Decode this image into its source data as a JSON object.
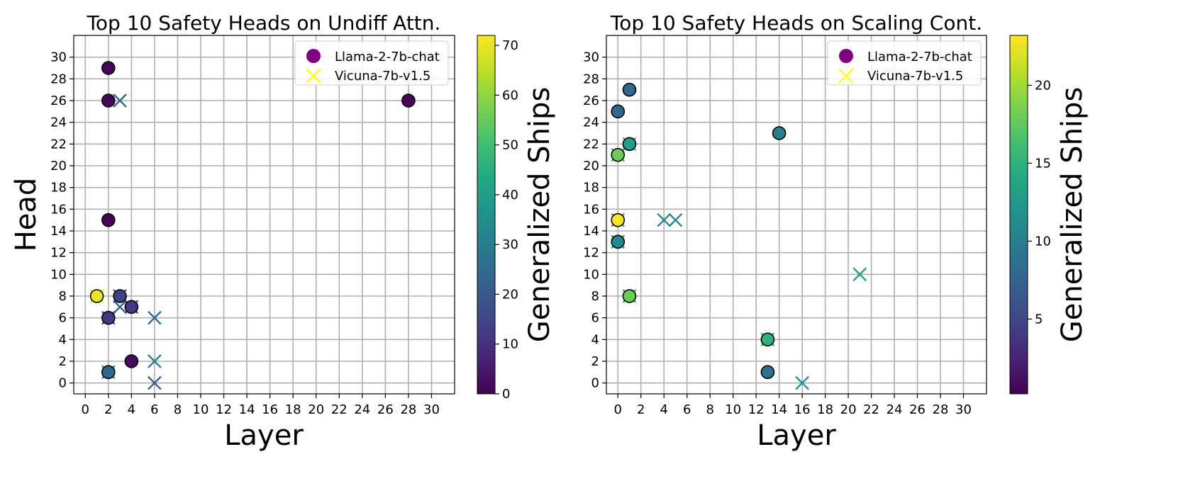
{
  "chart_data": [
    {
      "type": "scatter",
      "title": "Top 10 Safety Heads on Undiff Attn.",
      "xlabel": "Layer",
      "ylabel": "Head",
      "xlim": [
        -1,
        32
      ],
      "ylim": [
        -1,
        32
      ],
      "xticks": [
        0,
        2,
        4,
        6,
        8,
        10,
        12,
        14,
        16,
        18,
        20,
        22,
        24,
        26,
        28,
        30
      ],
      "yticks": [
        0,
        2,
        4,
        6,
        8,
        10,
        12,
        14,
        16,
        18,
        20,
        22,
        24,
        26,
        28,
        30
      ],
      "grid": true,
      "legend": {
        "placement": "top-right",
        "entries": [
          {
            "label": "Llama-2-7b-chat",
            "marker": "circle",
            "color": "#800080"
          },
          {
            "label": "Vicuna-7b-v1.5",
            "marker": "x",
            "color": "#ffff00"
          }
        ]
      },
      "colorbar": {
        "label": "Generalized Ships",
        "min": 0,
        "max": 72,
        "ticks": [
          0,
          10,
          20,
          30,
          40,
          50,
          60,
          70
        ]
      },
      "series": [
        {
          "name": "Llama-2-7b-chat",
          "marker": "circle",
          "points": [
            {
              "x": 2,
              "y": 29,
              "c": 1
            },
            {
              "x": 2,
              "y": 26,
              "c": 1
            },
            {
              "x": 28,
              "y": 26,
              "c": 1
            },
            {
              "x": 2,
              "y": 15,
              "c": 1
            },
            {
              "x": 1,
              "y": 8,
              "c": 70
            },
            {
              "x": 3,
              "y": 8,
              "c": 14
            },
            {
              "x": 4,
              "y": 7,
              "c": 12
            },
            {
              "x": 2,
              "y": 6,
              "c": 12
            },
            {
              "x": 4,
              "y": 2,
              "c": 2
            },
            {
              "x": 2,
              "y": 1,
              "c": 24
            }
          ]
        },
        {
          "name": "Vicuna-7b-v1.5",
          "marker": "x",
          "points": [
            {
              "x": 3,
              "y": 26,
              "c": 24
            },
            {
              "x": 1,
              "y": 8,
              "c": 68
            },
            {
              "x": 3,
              "y": 8,
              "c": 20
            },
            {
              "x": 3,
              "y": 7,
              "c": 22
            },
            {
              "x": 2,
              "y": 6,
              "c": 18
            },
            {
              "x": 6,
              "y": 6,
              "c": 24
            },
            {
              "x": 6,
              "y": 2,
              "c": 32
            },
            {
              "x": 2,
              "y": 1,
              "c": 34
            },
            {
              "x": 6,
              "y": 0,
              "c": 20
            },
            {
              "x": 4,
              "y": 7,
              "c": 16
            }
          ]
        }
      ]
    },
    {
      "type": "scatter",
      "title": "Top 10 Safety Heads on Scaling Cont.",
      "xlabel": "Layer",
      "ylabel": "",
      "xlim": [
        -1,
        32
      ],
      "ylim": [
        -1,
        32
      ],
      "xticks": [
        0,
        2,
        4,
        6,
        8,
        10,
        12,
        14,
        16,
        18,
        20,
        22,
        24,
        26,
        28,
        30
      ],
      "yticks": [
        0,
        2,
        4,
        6,
        8,
        10,
        12,
        14,
        16,
        18,
        20,
        22,
        24,
        26,
        28,
        30
      ],
      "grid": true,
      "legend": {
        "placement": "top-right",
        "entries": [
          {
            "label": "Llama-2-7b-chat",
            "marker": "circle",
            "color": "#800080"
          },
          {
            "label": "Vicuna-7b-v1.5",
            "marker": "x",
            "color": "#ffff00"
          }
        ]
      },
      "colorbar": {
        "label": "Generalized Ships",
        "min": 0.2,
        "max": 23.2,
        "ticks": [
          5,
          10,
          15,
          20
        ]
      },
      "series": [
        {
          "name": "Llama-2-7b-chat",
          "marker": "circle",
          "points": [
            {
              "x": 1,
              "y": 27,
              "c": 8
            },
            {
              "x": 0,
              "y": 25,
              "c": 8
            },
            {
              "x": 14,
              "y": 23,
              "c": 10
            },
            {
              "x": 1,
              "y": 22,
              "c": 13
            },
            {
              "x": 0,
              "y": 21,
              "c": 18
            },
            {
              "x": 0,
              "y": 15,
              "c": 23
            },
            {
              "x": 0,
              "y": 13,
              "c": 11
            },
            {
              "x": 1,
              "y": 8,
              "c": 18
            },
            {
              "x": 13,
              "y": 4,
              "c": 15
            },
            {
              "x": 13,
              "y": 1,
              "c": 9
            }
          ]
        },
        {
          "name": "Vicuna-7b-v1.5",
          "marker": "x",
          "points": [
            {
              "x": 1,
              "y": 22,
              "c": 16
            },
            {
              "x": 0,
              "y": 21,
              "c": 15
            },
            {
              "x": 4,
              "y": 15,
              "c": 11
            },
            {
              "x": 5,
              "y": 15,
              "c": 11
            },
            {
              "x": 0,
              "y": 15,
              "c": 14
            },
            {
              "x": 0,
              "y": 13,
              "c": 13
            },
            {
              "x": 21,
              "y": 10,
              "c": 13
            },
            {
              "x": 1,
              "y": 8,
              "c": 15
            },
            {
              "x": 13,
              "y": 4,
              "c": 15
            },
            {
              "x": 16,
              "y": 0,
              "c": 12
            }
          ]
        }
      ]
    }
  ]
}
